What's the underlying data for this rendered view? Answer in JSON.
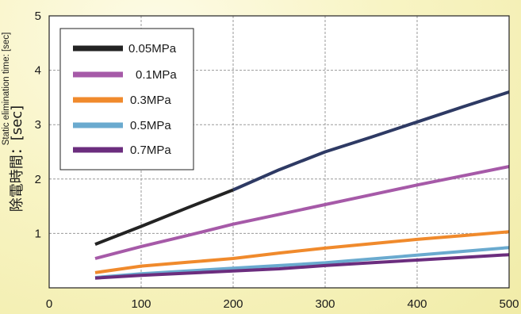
{
  "chart_data": {
    "type": "line",
    "ylabel": "除電時間：[sec]",
    "ylabel_sub": "Static elimination time: [sec]",
    "xlim": [
      0,
      500
    ],
    "ylim": [
      0,
      5
    ],
    "x_ticks": [
      "0",
      "100",
      "200",
      "300",
      "400",
      "500"
    ],
    "y_ticks": [
      "1",
      "2",
      "3",
      "4",
      "5"
    ],
    "grid": true,
    "legend_position": "top-left",
    "series": [
      {
        "name": "0.05MPa",
        "color": "#232323",
        "color_upper": "#2e3a64",
        "x": [
          50,
          100,
          150,
          200,
          250,
          300,
          350,
          400,
          450,
          500
        ],
        "y": [
          0.8,
          1.13,
          1.47,
          1.8,
          2.17,
          2.5,
          2.77,
          3.05,
          3.33,
          3.6
        ]
      },
      {
        "name": "0.1MPa",
        "color": "#a65aa8",
        "x": [
          50,
          100,
          150,
          200,
          250,
          300,
          350,
          400,
          450,
          500
        ],
        "y": [
          0.54,
          0.76,
          0.96,
          1.17,
          1.35,
          1.53,
          1.71,
          1.89,
          2.06,
          2.23
        ]
      },
      {
        "name": "0.3MPa",
        "color": "#f08a2c",
        "x": [
          50,
          100,
          150,
          200,
          250,
          300,
          350,
          400,
          450,
          500
        ],
        "y": [
          0.28,
          0.4,
          0.47,
          0.54,
          0.64,
          0.73,
          0.81,
          0.89,
          0.96,
          1.03
        ]
      },
      {
        "name": "0.5MPa",
        "color": "#6aaacf",
        "x": [
          50,
          100,
          150,
          200,
          250,
          300,
          350,
          400,
          450,
          500
        ],
        "y": [
          0.19,
          0.26,
          0.31,
          0.36,
          0.41,
          0.46,
          0.53,
          0.6,
          0.67,
          0.74
        ]
      },
      {
        "name": "0.7MPa",
        "color": "#6b2d7e",
        "x": [
          50,
          100,
          150,
          200,
          250,
          300,
          350,
          400,
          450,
          500
        ],
        "y": [
          0.18,
          0.23,
          0.27,
          0.31,
          0.35,
          0.41,
          0.46,
          0.51,
          0.56,
          0.61
        ]
      }
    ]
  }
}
